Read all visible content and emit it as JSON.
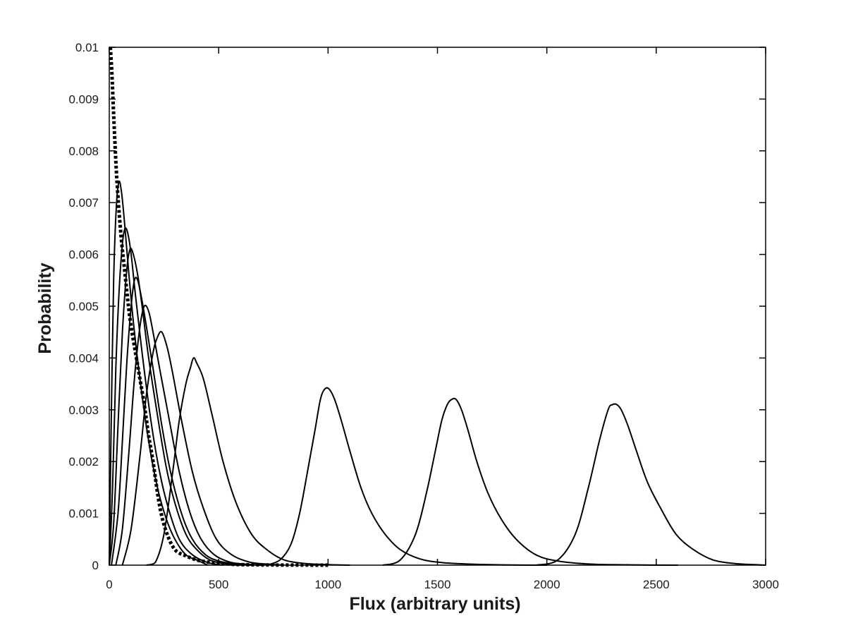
{
  "chart_data": {
    "type": "line",
    "title": "",
    "xlabel": "Flux (arbitrary units)",
    "ylabel": "Probability",
    "xlim": [
      0,
      3000
    ],
    "ylim": [
      0,
      0.01
    ],
    "x_ticks": [
      0,
      500,
      1000,
      1500,
      2000,
      2500,
      3000
    ],
    "y_ticks": [
      0,
      0.001,
      0.002,
      0.003,
      0.004,
      0.005,
      0.006,
      0.007,
      0.008,
      0.009,
      0.01
    ],
    "x_tick_labels": [
      "0",
      "500",
      "1000",
      "1500",
      "2000",
      "2500",
      "3000"
    ],
    "y_tick_labels": [
      "0",
      "0.001",
      "0.002",
      "0.003",
      "0.004",
      "0.005",
      "0.006",
      "0.007",
      "0.008",
      "0.009",
      "0.01"
    ],
    "grid": false,
    "legend": "none",
    "series": [
      {
        "style": "dotted",
        "x": [
          5,
          12,
          20,
          30,
          40,
          55,
          70,
          85,
          100,
          120,
          140,
          160,
          180,
          200,
          230,
          260,
          300,
          350,
          400,
          450,
          500,
          550,
          600,
          700,
          800,
          900,
          1000
        ],
        "y": [
          0.01,
          0.0095,
          0.0087,
          0.0078,
          0.0071,
          0.0063,
          0.0057,
          0.0051,
          0.0046,
          0.0041,
          0.0036,
          0.0031,
          0.0025,
          0.002,
          0.00115,
          0.00065,
          0.0003,
          0.00018,
          0.0001,
          6e-05,
          4e-05,
          2e-05,
          1e-05,
          4e-06,
          2e-06,
          1e-06,
          0
        ]
      },
      {
        "style": "solid",
        "x": [
          0,
          8,
          20,
          32,
          44,
          56,
          70,
          90,
          110,
          140,
          180,
          220,
          260,
          300,
          350,
          400,
          450
        ],
        "y": [
          0,
          0.0025,
          0.0055,
          0.0069,
          0.0074,
          0.0072,
          0.0066,
          0.0056,
          0.0047,
          0.0036,
          0.0024,
          0.0015,
          0.0009,
          0.0005,
          0.0002,
          0.0001,
          0
        ]
      },
      {
        "style": "solid",
        "x": [
          0,
          15,
          30,
          45,
          60,
          72,
          85,
          100,
          120,
          150,
          190,
          230,
          270,
          320,
          380,
          450,
          520
        ],
        "y": [
          0,
          0.0015,
          0.0038,
          0.0053,
          0.0062,
          0.0065,
          0.0064,
          0.006,
          0.0052,
          0.0041,
          0.0028,
          0.0018,
          0.0011,
          0.0005,
          0.0002,
          5e-05,
          0
        ]
      },
      {
        "style": "solid",
        "x": [
          0,
          20,
          40,
          60,
          80,
          95,
          110,
          130,
          150,
          180,
          220,
          260,
          300,
          350,
          400,
          460,
          540,
          600
        ],
        "y": [
          0,
          0.0008,
          0.0027,
          0.0045,
          0.0057,
          0.0061,
          0.006,
          0.0056,
          0.005,
          0.004,
          0.0029,
          0.0019,
          0.0012,
          0.0006,
          0.0003,
          0.0001,
          2e-05,
          0
        ]
      },
      {
        "style": "solid",
        "x": [
          10,
          40,
          60,
          80,
          100,
          115,
          130,
          150,
          170,
          200,
          240,
          280,
          330,
          380,
          440,
          500,
          580,
          650
        ],
        "y": [
          0,
          0.001,
          0.0024,
          0.0039,
          0.005,
          0.0055,
          0.0055,
          0.0051,
          0.0046,
          0.0038,
          0.0027,
          0.0018,
          0.001,
          0.0005,
          0.0002,
          8e-05,
          2e-05,
          0
        ]
      },
      {
        "style": "solid",
        "x": [
          30,
          60,
          90,
          115,
          140,
          160,
          180,
          200,
          230,
          270,
          320,
          370,
          420,
          480,
          550,
          620,
          700
        ],
        "y": [
          0,
          0.0007,
          0.0022,
          0.0036,
          0.0046,
          0.005,
          0.0049,
          0.0045,
          0.0038,
          0.0029,
          0.0018,
          0.001,
          0.0005,
          0.0002,
          6e-05,
          2e-05,
          0
        ]
      },
      {
        "style": "solid",
        "x": [
          60,
          100,
          140,
          170,
          200,
          220,
          240,
          265,
          290,
          330,
          380,
          430,
          490,
          560,
          640,
          720,
          800
        ],
        "y": [
          0,
          0.0007,
          0.0021,
          0.0033,
          0.0041,
          0.0044,
          0.0045,
          0.0042,
          0.0037,
          0.0028,
          0.0018,
          0.0011,
          0.0005,
          0.0002,
          6e-05,
          2e-05,
          0
        ]
      },
      {
        "style": "solid",
        "x": [
          170,
          210,
          250,
          290,
          320,
          350,
          370,
          385,
          400,
          430,
          470,
          520,
          580,
          650,
          720,
          800,
          900,
          1000,
          1100
        ],
        "y": [
          0,
          5e-05,
          0.0006,
          0.0018,
          0.0028,
          0.0035,
          0.0038,
          0.004,
          0.0039,
          0.0036,
          0.0029,
          0.002,
          0.0012,
          0.0006,
          0.0003,
          0.0001,
          3e-05,
          1e-05,
          0
        ]
      },
      {
        "style": "solid",
        "x": [
          720,
          780,
          830,
          870,
          910,
          940,
          965,
          985,
          1005,
          1030,
          1060,
          1100,
          1150,
          1200,
          1260,
          1330,
          1420,
          1520,
          1650,
          1800,
          2000
        ],
        "y": [
          0,
          0.0001,
          0.0004,
          0.001,
          0.0019,
          0.0026,
          0.0032,
          0.0034,
          0.0034,
          0.0032,
          0.0028,
          0.0022,
          0.0015,
          0.001,
          0.0006,
          0.0003,
          0.00012,
          5e-05,
          2e-05,
          5e-06,
          0
        ]
      },
      {
        "style": "solid",
        "x": [
          1250,
          1330,
          1400,
          1450,
          1490,
          1520,
          1545,
          1565,
          1585,
          1610,
          1640,
          1680,
          1730,
          1790,
          1860,
          1950,
          2050,
          2200,
          2400,
          2600
        ],
        "y": [
          0,
          0.0001,
          0.0006,
          0.0014,
          0.0022,
          0.0028,
          0.0031,
          0.0032,
          0.0032,
          0.003,
          0.0026,
          0.002,
          0.0014,
          0.0009,
          0.0005,
          0.0002,
          8e-05,
          2e-05,
          5e-06,
          0
        ]
      },
      {
        "style": "solid",
        "x": [
          1950,
          2050,
          2130,
          2190,
          2240,
          2280,
          2300,
          2320,
          2340,
          2370,
          2410,
          2460,
          2520,
          2590,
          2670,
          2760,
          2860,
          2950,
          3000
        ],
        "y": [
          0,
          0.0001,
          0.0006,
          0.0015,
          0.0024,
          0.003,
          0.0031,
          0.0031,
          0.003,
          0.0027,
          0.0022,
          0.0016,
          0.0011,
          0.0006,
          0.0003,
          0.0001,
          3e-05,
          1e-05,
          0
        ]
      }
    ]
  }
}
